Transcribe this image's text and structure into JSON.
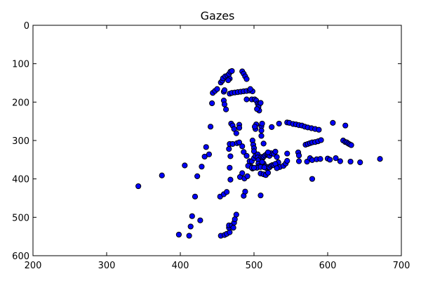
{
  "chart_data": {
    "type": "scatter",
    "title": "Gazes",
    "xlabel": "",
    "ylabel": "",
    "xlim": [
      200,
      700
    ],
    "ylim": [
      600,
      0
    ],
    "y_inverted": true,
    "x_ticks": [
      "200",
      "300",
      "400",
      "500",
      "600",
      "700"
    ],
    "y_ticks": [
      "0",
      "100",
      "200",
      "300",
      "400",
      "500",
      "600"
    ],
    "grid": false,
    "legend": "none",
    "marker_color": "#0000ff",
    "marker_edge": "#000000",
    "series": [
      {
        "points": [
          [
            343,
            419
          ],
          [
            375,
            391
          ],
          [
            398,
            545
          ],
          [
            406,
            365
          ],
          [
            412,
            548
          ],
          [
            414,
            524
          ],
          [
            416,
            497
          ],
          [
            420,
            446
          ],
          [
            423,
            393
          ],
          [
            427,
            508
          ],
          [
            429,
            368
          ],
          [
            433,
            342
          ],
          [
            435,
            317
          ],
          [
            439,
            336
          ],
          [
            441,
            264
          ],
          [
            443,
            203
          ],
          [
            444,
            176
          ],
          [
            447,
            171
          ],
          [
            450,
            166
          ],
          [
            454,
            446
          ],
          [
            455,
            149
          ],
          [
            457,
            144
          ],
          [
            459,
            173
          ],
          [
            460,
            169
          ],
          [
            459,
            196
          ],
          [
            460,
            206
          ],
          [
            462,
            219
          ],
          [
            459,
            440
          ],
          [
            463,
            434
          ],
          [
            455,
            548
          ],
          [
            460,
            546
          ],
          [
            463,
            543
          ],
          [
            467,
            539
          ],
          [
            466,
            527
          ],
          [
            466,
            521
          ],
          [
            470,
            521
          ],
          [
            473,
            514
          ],
          [
            474,
            505
          ],
          [
            476,
            493
          ],
          [
            472,
            527
          ],
          [
            458,
            138
          ],
          [
            461,
            133
          ],
          [
            464,
            131
          ],
          [
            466,
            127
          ],
          [
            468,
            121
          ],
          [
            470,
            119
          ],
          [
            467,
            139
          ],
          [
            465,
            143
          ],
          [
            467,
            178
          ],
          [
            470,
            176
          ],
          [
            474,
            175
          ],
          [
            478,
            174
          ],
          [
            482,
            173
          ],
          [
            486,
            172
          ],
          [
            490,
            171
          ],
          [
            494,
            170
          ],
          [
            498,
            172
          ],
          [
            495,
            166
          ],
          [
            484,
            120
          ],
          [
            486,
            126
          ],
          [
            488,
            133
          ],
          [
            490,
            140
          ],
          [
            469,
            256
          ],
          [
            471,
            261
          ],
          [
            473,
            270
          ],
          [
            476,
            281
          ],
          [
            480,
            259
          ],
          [
            480,
            267
          ],
          [
            467,
            309
          ],
          [
            471,
            309
          ],
          [
            477,
            307
          ],
          [
            480,
            305
          ],
          [
            484,
            315
          ],
          [
            486,
            330
          ],
          [
            490,
            340
          ],
          [
            494,
            354
          ],
          [
            496,
            368
          ],
          [
            498,
            373
          ],
          [
            466,
            322
          ],
          [
            468,
            341
          ],
          [
            467,
            371
          ],
          [
            468,
            402
          ],
          [
            481,
            395
          ],
          [
            484,
            385
          ],
          [
            487,
            399
          ],
          [
            491,
            393
          ],
          [
            486,
            444
          ],
          [
            488,
            433
          ],
          [
            490,
            193
          ],
          [
            497,
            193
          ],
          [
            501,
            193
          ],
          [
            503,
            196
          ],
          [
            505,
            204
          ],
          [
            507,
            206
          ],
          [
            506,
            213
          ],
          [
            507,
            222
          ],
          [
            509,
            202
          ],
          [
            504,
            218
          ],
          [
            498,
            300
          ],
          [
            499,
            311
          ],
          [
            500,
            320
          ],
          [
            500,
            328
          ],
          [
            502,
            270
          ],
          [
            503,
            258
          ],
          [
            501,
            264
          ],
          [
            510,
            263
          ],
          [
            510,
            274
          ],
          [
            510,
            288
          ],
          [
            511,
            256
          ],
          [
            513,
            308
          ],
          [
            492,
            366
          ],
          [
            497,
            354
          ],
          [
            500,
            346
          ],
          [
            502,
            340
          ],
          [
            505,
            336
          ],
          [
            505,
            344
          ],
          [
            506,
            351
          ],
          [
            506,
            360
          ],
          [
            507,
            367
          ],
          [
            504,
            371
          ],
          [
            497,
            371
          ],
          [
            500,
            371
          ],
          [
            510,
            343
          ],
          [
            512,
            345
          ],
          [
            513,
            342
          ],
          [
            515,
            339
          ],
          [
            517,
            336
          ],
          [
            519,
            337
          ],
          [
            521,
            340
          ],
          [
            523,
            333
          ],
          [
            527,
            335
          ],
          [
            529,
            329
          ],
          [
            531,
            343
          ],
          [
            533,
            357
          ],
          [
            531,
            369
          ],
          [
            535,
            369
          ],
          [
            513,
            360
          ],
          [
            515,
            367
          ],
          [
            517,
            372
          ],
          [
            519,
            369
          ],
          [
            521,
            370
          ],
          [
            523,
            366
          ],
          [
            525,
            364
          ],
          [
            527,
            364
          ],
          [
            529,
            361
          ],
          [
            531,
            372
          ],
          [
            511,
            356
          ],
          [
            509,
            369
          ],
          [
            514,
            370
          ],
          [
            509,
            386
          ],
          [
            513,
            388
          ],
          [
            516,
            390
          ],
          [
            519,
            384
          ],
          [
            509,
            443
          ],
          [
            519,
            331
          ],
          [
            524,
            265
          ],
          [
            534,
            256
          ],
          [
            540,
            366
          ],
          [
            543,
            360
          ],
          [
            545,
            353
          ],
          [
            545,
            334
          ],
          [
            545,
            253
          ],
          [
            548,
            254
          ],
          [
            553,
            257
          ],
          [
            557,
            258
          ],
          [
            561,
            260
          ],
          [
            565,
            261
          ],
          [
            569,
            264
          ],
          [
            573,
            266
          ],
          [
            578,
            268
          ],
          [
            583,
            270
          ],
          [
            588,
            272
          ],
          [
            560,
            331
          ],
          [
            561,
            339
          ],
          [
            561,
            354
          ],
          [
            570,
            311
          ],
          [
            573,
            309
          ],
          [
            576,
            307
          ],
          [
            579,
            305
          ],
          [
            583,
            304
          ],
          [
            587,
            302
          ],
          [
            591,
            299
          ],
          [
            572,
            355
          ],
          [
            576,
            346
          ],
          [
            579,
            351
          ],
          [
            585,
            349
          ],
          [
            590,
            348
          ],
          [
            579,
            400
          ],
          [
            600,
            347
          ],
          [
            603,
            350
          ],
          [
            607,
            254
          ],
          [
            611,
            346
          ],
          [
            617,
            354
          ],
          [
            621,
            300
          ],
          [
            624,
            261
          ],
          [
            624,
            304
          ],
          [
            626,
            305
          ],
          [
            628,
            308
          ],
          [
            630,
            310
          ],
          [
            632,
            312
          ],
          [
            631,
            355
          ],
          [
            644,
            357
          ],
          [
            671,
            348
          ]
        ]
      }
    ]
  }
}
